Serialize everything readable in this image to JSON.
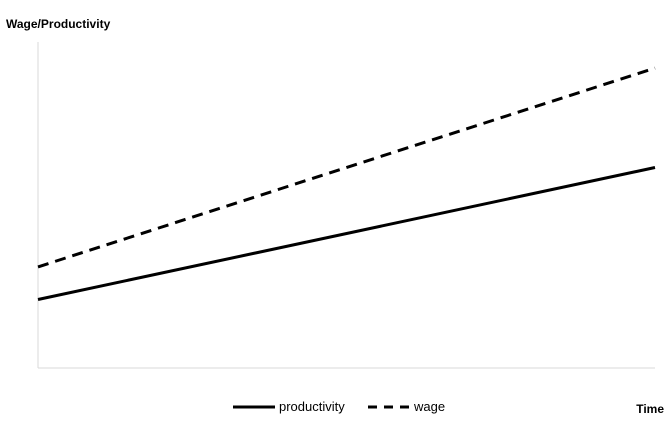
{
  "chart_data": {
    "type": "line",
    "ylabel": "Wage/Productivity",
    "xlabel": "Time",
    "xlim": [
      0,
      1
    ],
    "ylim": [
      0,
      1
    ],
    "grid": false,
    "legend_position": "bottom",
    "series": [
      {
        "name": "productivity",
        "style": "solid",
        "color": "#000000",
        "x": [
          0,
          1
        ],
        "values": [
          0.21,
          0.615
        ]
      },
      {
        "name": "wage",
        "style": "dashed",
        "color": "#000000",
        "x": [
          0,
          1
        ],
        "values": [
          0.31,
          0.92
        ]
      }
    ]
  }
}
